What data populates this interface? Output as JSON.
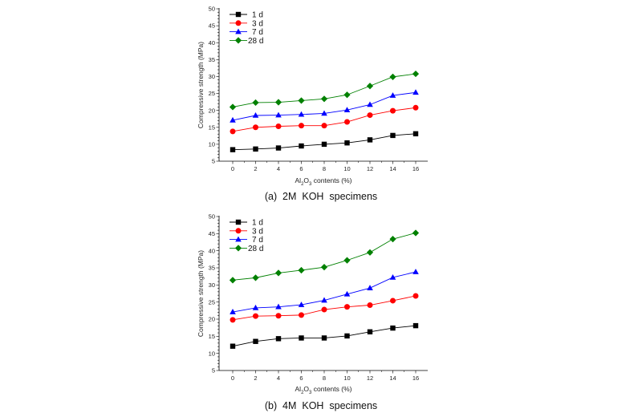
{
  "chart_data": [
    {
      "type": "line",
      "title": "",
      "caption": "(a)  2M  KOH  specimens",
      "xlabel": {
        "prefix": "Al",
        "sub1": "2",
        "mid": "O",
        "sub2": "3",
        "suffix": " contents (%)"
      },
      "ylabel": "Compressive strength (MPa)",
      "xlim": [
        -1,
        17
      ],
      "ylim": [
        5,
        50
      ],
      "xticks": [
        0,
        2,
        4,
        6,
        8,
        10,
        12,
        14,
        16
      ],
      "yticks": [
        5,
        10,
        15,
        20,
        25,
        30,
        35,
        40,
        45,
        50
      ],
      "legend_position": "top-left",
      "x": [
        0,
        2,
        4,
        6,
        8,
        10,
        12,
        14,
        16
      ],
      "series": [
        {
          "name": "1 d",
          "color": "#000000",
          "marker": "square",
          "values": [
            8.4,
            8.6,
            8.9,
            9.5,
            10.0,
            10.4,
            11.3,
            12.6,
            13.1
          ]
        },
        {
          "name": "3 d",
          "color": "#ff0000",
          "marker": "circle",
          "values": [
            13.8,
            15.0,
            15.3,
            15.5,
            15.5,
            16.6,
            18.6,
            19.9,
            20.8
          ]
        },
        {
          "name": "7 d",
          "color": "#0000ff",
          "marker": "triangle",
          "values": [
            17.1,
            18.5,
            18.6,
            18.8,
            19.1,
            20.1,
            21.7,
            24.4,
            25.3
          ]
        },
        {
          "name": "28 d",
          "color": "#008000",
          "marker": "diamond",
          "values": [
            21.0,
            22.3,
            22.4,
            22.9,
            23.4,
            24.6,
            27.2,
            29.9,
            30.8
          ]
        }
      ]
    },
    {
      "type": "line",
      "title": "",
      "caption": "(b)  4M  KOH  specimens",
      "xlabel": {
        "prefix": "Al",
        "sub1": "2",
        "mid": "O",
        "sub2": "3",
        "suffix": " contents (%)"
      },
      "ylabel": "Compressive strength (MPa)",
      "xlim": [
        -1,
        17
      ],
      "ylim": [
        5,
        50
      ],
      "xticks": [
        0,
        2,
        4,
        6,
        8,
        10,
        12,
        14,
        16
      ],
      "yticks": [
        5,
        10,
        15,
        20,
        25,
        30,
        35,
        40,
        45,
        50
      ],
      "legend_position": "top-left",
      "x": [
        0,
        2,
        4,
        6,
        8,
        10,
        12,
        14,
        16
      ],
      "series": [
        {
          "name": "1 d",
          "color": "#000000",
          "marker": "square",
          "values": [
            12.1,
            13.5,
            14.3,
            14.5,
            14.5,
            15.1,
            16.3,
            17.4,
            18.1
          ]
        },
        {
          "name": "3 d",
          "color": "#ff0000",
          "marker": "circle",
          "values": [
            19.8,
            20.9,
            21.0,
            21.2,
            22.8,
            23.6,
            24.1,
            25.4,
            26.8
          ]
        },
        {
          "name": "7 d",
          "color": "#0000ff",
          "marker": "triangle",
          "values": [
            22.1,
            23.3,
            23.6,
            24.2,
            25.5,
            27.3,
            29.1,
            32.2,
            33.8
          ]
        },
        {
          "name": "28 d",
          "color": "#008000",
          "marker": "diamond",
          "values": [
            31.4,
            32.1,
            33.5,
            34.3,
            35.2,
            37.2,
            39.5,
            43.4,
            45.2
          ]
        }
      ]
    }
  ]
}
